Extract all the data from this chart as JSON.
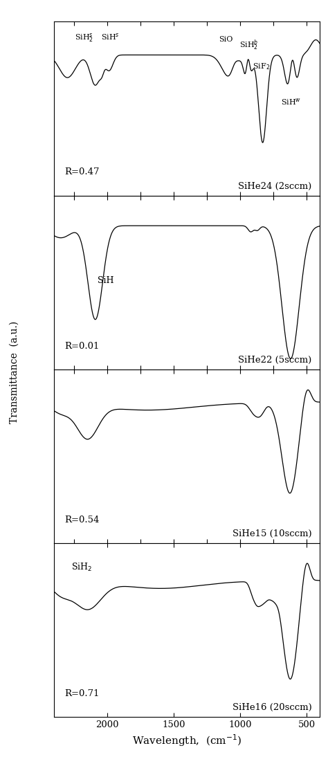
{
  "xlabel": "Wavelength,  (cm$^{-1}$)",
  "ylabel": "Transmittance  (a.u.)",
  "xlim": [
    2400,
    400
  ],
  "panels": [
    {
      "label": "SiHe24 (2sccm)",
      "R_label": "R=0.47"
    },
    {
      "label": "SiHe22 (5sccm)",
      "R_label": "R=0.01"
    },
    {
      "label": "SiHe15 (10sccm)",
      "R_label": "R=0.54"
    },
    {
      "label": "SiHe16 (20sccm)",
      "R_label": "R=0.71"
    }
  ],
  "xticks": [
    2000,
    1500,
    1000,
    500
  ],
  "background_color": "#ffffff",
  "line_color": "#000000"
}
